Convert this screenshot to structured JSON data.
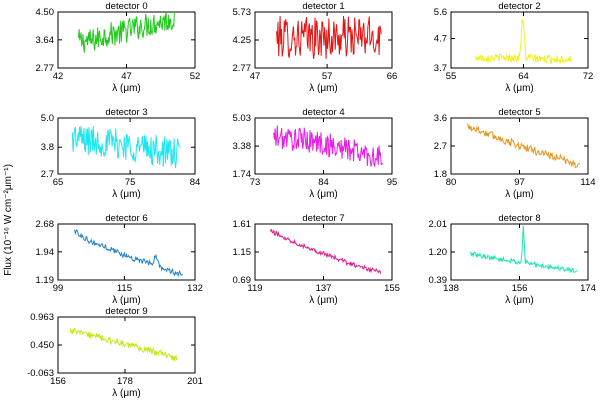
{
  "figure": {
    "ylabel": "Flux (10⁻¹⁶ W cm⁻²μm⁻¹)",
    "xlabel": "λ (μm)"
  },
  "colors": {
    "axes": "#000000",
    "background": "#ffffff"
  },
  "chart_data": [
    {
      "type": "line",
      "title": "detector 0",
      "xlabel": "λ (μm)",
      "xlim": [
        42,
        52
      ],
      "ylim": [
        2.77,
        4.5
      ],
      "xticks": [
        "42",
        "47",
        "52"
      ],
      "yticks": [
        "2.77",
        "3.64",
        "4.50"
      ],
      "series": [
        {
          "color": "#22c81e",
          "x": [
            43.5,
            44.5,
            45.5,
            46.5,
            47.5,
            48.5,
            49.5,
            50.5
          ],
          "values": [
            3.6,
            3.6,
            3.8,
            3.85,
            4.0,
            4.1,
            4.2,
            4.3
          ]
        }
      ]
    },
    {
      "type": "line",
      "title": "detector 1",
      "xlabel": "λ (μm)",
      "xlim": [
        47,
        66
      ],
      "ylim": [
        2.77,
        5.73
      ],
      "xticks": [
        "47",
        "57",
        "66"
      ],
      "yticks": [
        "2.77",
        "4.25",
        "5.73"
      ],
      "series": [
        {
          "color": "#e41414",
          "x": [
            50,
            53,
            56,
            59,
            62,
            64.5
          ],
          "values": [
            4.4,
            4.4,
            4.35,
            4.4,
            4.4,
            4.45
          ]
        }
      ]
    },
    {
      "type": "line",
      "title": "detector 2",
      "xlabel": "λ (μm)",
      "xlim": [
        55,
        72
      ],
      "ylim": [
        3.7,
        5.6
      ],
      "xticks": [
        "55",
        "64",
        "72"
      ],
      "yticks": [
        "3.7",
        "4.7",
        "5.6"
      ],
      "series": [
        {
          "color": "#f0f01e",
          "x": [
            58,
            60,
            62,
            63.5,
            63.9,
            64.3,
            66,
            68,
            70
          ],
          "values": [
            4.05,
            4.05,
            4.05,
            4.05,
            5.45,
            4.05,
            4.0,
            4.0,
            4.0
          ]
        }
      ]
    },
    {
      "type": "line",
      "title": "detector 3",
      "xlabel": "λ (μm)",
      "xlim": [
        65,
        84
      ],
      "ylim": [
        2.7,
        5.0
      ],
      "xticks": [
        "65",
        "75",
        "84"
      ],
      "yticks": [
        "2.7",
        "3.8",
        "5.0"
      ],
      "series": [
        {
          "color": "#1ee6f0",
          "x": [
            67,
            70,
            73,
            76,
            79,
            82
          ],
          "values": [
            4.2,
            4.05,
            3.95,
            3.8,
            3.65,
            3.5
          ]
        }
      ]
    },
    {
      "type": "line",
      "title": "detector 4",
      "xlabel": "λ (μm)",
      "xlim": [
        73,
        95
      ],
      "ylim": [
        1.74,
        5.03
      ],
      "xticks": [
        "73",
        "84",
        "95"
      ],
      "yticks": [
        "1.74",
        "3.38",
        "5.03"
      ],
      "series": [
        {
          "color": "#e61ee6",
          "x": [
            76,
            79,
            82,
            85,
            88,
            91,
            93.5
          ],
          "values": [
            3.9,
            3.8,
            3.7,
            3.4,
            3.2,
            2.9,
            2.65
          ]
        }
      ]
    },
    {
      "type": "line",
      "title": "detector 5",
      "xlabel": "λ (μm)",
      "xlim": [
        80,
        114
      ],
      "ylim": [
        1.8,
        3.6
      ],
      "xticks": [
        "80",
        "97",
        "114"
      ],
      "yticks": [
        "1.8",
        "2.7",
        "3.6"
      ],
      "series": [
        {
          "color": "#e6961e",
          "x": [
            84,
            90,
            96,
            102,
            108,
            112
          ],
          "values": [
            3.35,
            3.05,
            2.75,
            2.5,
            2.25,
            2.05
          ]
        }
      ]
    },
    {
      "type": "line",
      "title": "detector 6",
      "xlabel": "λ (μm)",
      "xlim": [
        99,
        132
      ],
      "ylim": [
        1.19,
        2.68
      ],
      "xticks": [
        "99",
        "115",
        "132"
      ],
      "yticks": [
        "1.19",
        "1.94",
        "2.68"
      ],
      "series": [
        {
          "color": "#1e82c8",
          "x": [
            103,
            107,
            111,
            115,
            119,
            121.5,
            122.5,
            123.5,
            126,
            129
          ],
          "values": [
            2.5,
            2.2,
            2.05,
            1.85,
            1.7,
            1.62,
            1.82,
            1.55,
            1.42,
            1.35
          ]
        }
      ]
    },
    {
      "type": "line",
      "title": "detector 7",
      "xlabel": "λ (μm)",
      "xlim": [
        119,
        155
      ],
      "ylim": [
        0.69,
        1.61
      ],
      "xticks": [
        "119",
        "137",
        "155"
      ],
      "yticks": [
        "0.69",
        "1.15",
        "1.61"
      ],
      "series": [
        {
          "color": "#dc1e8c",
          "x": [
            123,
            128,
            133,
            138,
            143,
            148,
            152
          ],
          "values": [
            1.5,
            1.35,
            1.22,
            1.1,
            0.98,
            0.88,
            0.82
          ]
        }
      ]
    },
    {
      "type": "line",
      "title": "detector 8",
      "xlabel": "λ (μm)",
      "xlim": [
        138,
        174
      ],
      "ylim": [
        0.39,
        2.01
      ],
      "xticks": [
        "138",
        "156",
        "174"
      ],
      "yticks": [
        "0.39",
        "1.20",
        "2.01"
      ],
      "series": [
        {
          "color": "#1ee6b4",
          "x": [
            143,
            148,
            153,
            156.5,
            157.0,
            157.5,
            162,
            167,
            171
          ],
          "values": [
            1.15,
            1.05,
            0.95,
            0.9,
            1.95,
            0.9,
            0.8,
            0.72,
            0.65
          ]
        }
      ]
    },
    {
      "type": "line",
      "title": "detector 9",
      "xlabel": "λ (μm)",
      "xlim": [
        156,
        201
      ],
      "ylim": [
        -0.063,
        0.963
      ],
      "xticks": [
        "156",
        "178",
        "201"
      ],
      "yticks": [
        "-0.063",
        "0.450",
        "0.963"
      ],
      "series": [
        {
          "color": "#c8e61e",
          "x": [
            160,
            167,
            174,
            181,
            188,
            195
          ],
          "values": [
            0.72,
            0.62,
            0.52,
            0.42,
            0.32,
            0.2
          ]
        }
      ]
    }
  ]
}
